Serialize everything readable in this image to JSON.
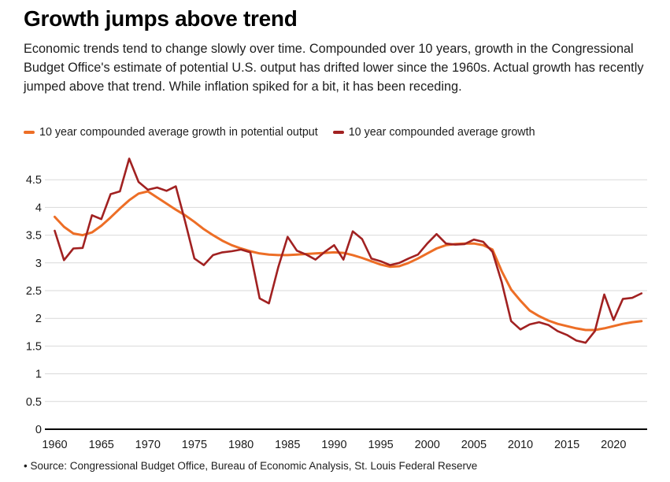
{
  "header": {
    "title": "Growth jumps above trend",
    "description": "Economic trends tend to change slowly over time. Compounded over 10 years, growth in the Congressional Budget Office's estimate of potential U.S. output has drifted lower since the 1960s. Actual growth has recently jumped above that trend. While inflation spiked for a bit, it has been receding."
  },
  "legend": {
    "items": [
      {
        "label": "10 year compounded average growth in potential output",
        "color": "#ed6e26"
      },
      {
        "label": "10 year compounded average growth",
        "color": "#a12121"
      }
    ]
  },
  "footer": {
    "source": "• Source: Congressional Budget Office, Bureau of Economic Analysis, St. Louis Federal Reserve"
  },
  "colors": {
    "potential_line": "#ed6e26",
    "actual_line": "#a12121",
    "gridline": "#d9d9d9",
    "axis_line": "#000000",
    "tick_label": "#1a1a1a"
  },
  "chart_data": {
    "type": "line",
    "title": "Growth jumps above trend",
    "xlabel": "",
    "ylabel": "",
    "xlim": [
      1960,
      2023
    ],
    "ylim": [
      0,
      4.9
    ],
    "grid": true,
    "legend_position": "top",
    "xticks": [
      1960,
      1965,
      1970,
      1975,
      1980,
      1985,
      1990,
      1995,
      2000,
      2005,
      2010,
      2015,
      2020
    ],
    "yticks": [
      0,
      0.5,
      1,
      1.5,
      2,
      2.5,
      3,
      3.5,
      4,
      4.5
    ],
    "ytick_labels": [
      "0",
      "0.5",
      "1",
      "1.5",
      "2",
      "2.5",
      "3",
      "3.5",
      "4",
      "4.5"
    ],
    "x": [
      1960,
      1961,
      1962,
      1963,
      1964,
      1965,
      1966,
      1967,
      1968,
      1969,
      1970,
      1971,
      1972,
      1973,
      1974,
      1975,
      1976,
      1977,
      1978,
      1979,
      1980,
      1981,
      1982,
      1983,
      1984,
      1985,
      1986,
      1987,
      1988,
      1989,
      1990,
      1991,
      1992,
      1993,
      1994,
      1995,
      1996,
      1997,
      1998,
      1999,
      2000,
      2001,
      2002,
      2003,
      2004,
      2005,
      2006,
      2007,
      2008,
      2009,
      2010,
      2011,
      2012,
      2013,
      2014,
      2015,
      2016,
      2017,
      2018,
      2019,
      2020,
      2021,
      2022,
      2023
    ],
    "series": [
      {
        "name": "10 year compounded average growth in potential output",
        "color": "#ed6e26",
        "stroke_width": 3,
        "values": [
          3.83,
          3.65,
          3.53,
          3.5,
          3.55,
          3.67,
          3.82,
          3.98,
          4.13,
          4.25,
          4.29,
          4.18,
          4.07,
          3.96,
          3.86,
          3.74,
          3.61,
          3.5,
          3.4,
          3.32,
          3.26,
          3.21,
          3.17,
          3.15,
          3.14,
          3.14,
          3.15,
          3.16,
          3.17,
          3.18,
          3.19,
          3.18,
          3.14,
          3.09,
          3.03,
          2.97,
          2.93,
          2.94,
          3.0,
          3.08,
          3.17,
          3.26,
          3.32,
          3.34,
          3.35,
          3.35,
          3.32,
          3.24,
          2.85,
          2.52,
          2.32,
          2.14,
          2.04,
          1.96,
          1.9,
          1.86,
          1.82,
          1.79,
          1.79,
          1.82,
          1.86,
          1.9,
          1.93,
          1.95
        ]
      },
      {
        "name": "10 year compounded average growth",
        "color": "#a12121",
        "stroke_width": 2.6,
        "values": [
          3.58,
          3.05,
          3.26,
          3.27,
          3.86,
          3.79,
          4.24,
          4.29,
          4.88,
          4.46,
          4.32,
          4.36,
          4.3,
          4.38,
          3.75,
          3.08,
          2.96,
          3.14,
          3.19,
          3.21,
          3.24,
          3.19,
          2.36,
          2.27,
          2.92,
          3.47,
          3.22,
          3.15,
          3.06,
          3.2,
          3.32,
          3.06,
          3.57,
          3.43,
          3.08,
          3.03,
          2.96,
          3.0,
          3.08,
          3.15,
          3.35,
          3.52,
          3.35,
          3.33,
          3.34,
          3.42,
          3.38,
          3.2,
          2.65,
          1.95,
          1.8,
          1.89,
          1.93,
          1.88,
          1.77,
          1.7,
          1.6,
          1.56,
          1.77,
          2.43,
          1.97,
          2.35,
          2.37,
          2.45
        ]
      }
    ]
  }
}
